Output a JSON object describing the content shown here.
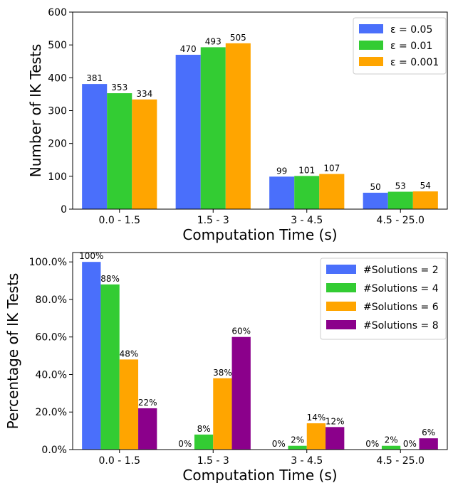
{
  "chart_data": [
    {
      "type": "bar",
      "categories": [
        "0.0 - 1.5",
        "1.5 - 3",
        "3 - 4.5",
        "4.5 - 25.0"
      ],
      "xlabel": "Computation Time (s)",
      "ylabel": "Number of IK Tests",
      "ylim": [
        0,
        600
      ],
      "yticks": [
        "0",
        "100",
        "200",
        "300",
        "400",
        "500",
        "600"
      ],
      "legend_position": "top-right",
      "grid": false,
      "series": [
        {
          "name": "ε = 0.05",
          "color": "#4a6ffb",
          "values": [
            381,
            470,
            99,
            50
          ],
          "labels": [
            "381",
            "470",
            "99",
            "50"
          ]
        },
        {
          "name": "ε = 0.01",
          "color": "#33cc33",
          "values": [
            353,
            493,
            101,
            53
          ],
          "labels": [
            "353",
            "493",
            "101",
            "53"
          ]
        },
        {
          "name": "ε = 0.001",
          "color": "#ffa500",
          "values": [
            334,
            505,
            107,
            54
          ],
          "labels": [
            "334",
            "505",
            "107",
            "54"
          ]
        }
      ]
    },
    {
      "type": "bar",
      "categories": [
        "0.0 - 1.5",
        "1.5 - 3",
        "3 - 4.5",
        "4.5 - 25.0"
      ],
      "xlabel": "Computation Time (s)",
      "ylabel": "Percentage of IK Tests",
      "ylim": [
        0,
        105
      ],
      "yticks": [
        "0.0%",
        "20.0%",
        "40.0%",
        "60.0%",
        "80.0%",
        "100.0%"
      ],
      "legend_position": "top-right",
      "grid": false,
      "series": [
        {
          "name": "#Solutions = 2",
          "color": "#4a6ffb",
          "values": [
            100,
            0,
            0,
            0
          ],
          "labels": [
            "100%",
            "0%",
            "0%",
            "0%"
          ]
        },
        {
          "name": "#Solutions = 4",
          "color": "#33cc33",
          "values": [
            88,
            8,
            2,
            2
          ],
          "labels": [
            "88%",
            "8%",
            "2%",
            "2%"
          ]
        },
        {
          "name": "#Solutions = 6",
          "color": "#ffa500",
          "values": [
            48,
            38,
            14,
            0
          ],
          "labels": [
            "48%",
            "38%",
            "14%",
            "0%"
          ]
        },
        {
          "name": "#Solutions = 8",
          "color": "#8b008b",
          "values": [
            22,
            60,
            12,
            6
          ],
          "labels": [
            "22%",
            "60%",
            "12%",
            "6%"
          ]
        }
      ]
    }
  ]
}
